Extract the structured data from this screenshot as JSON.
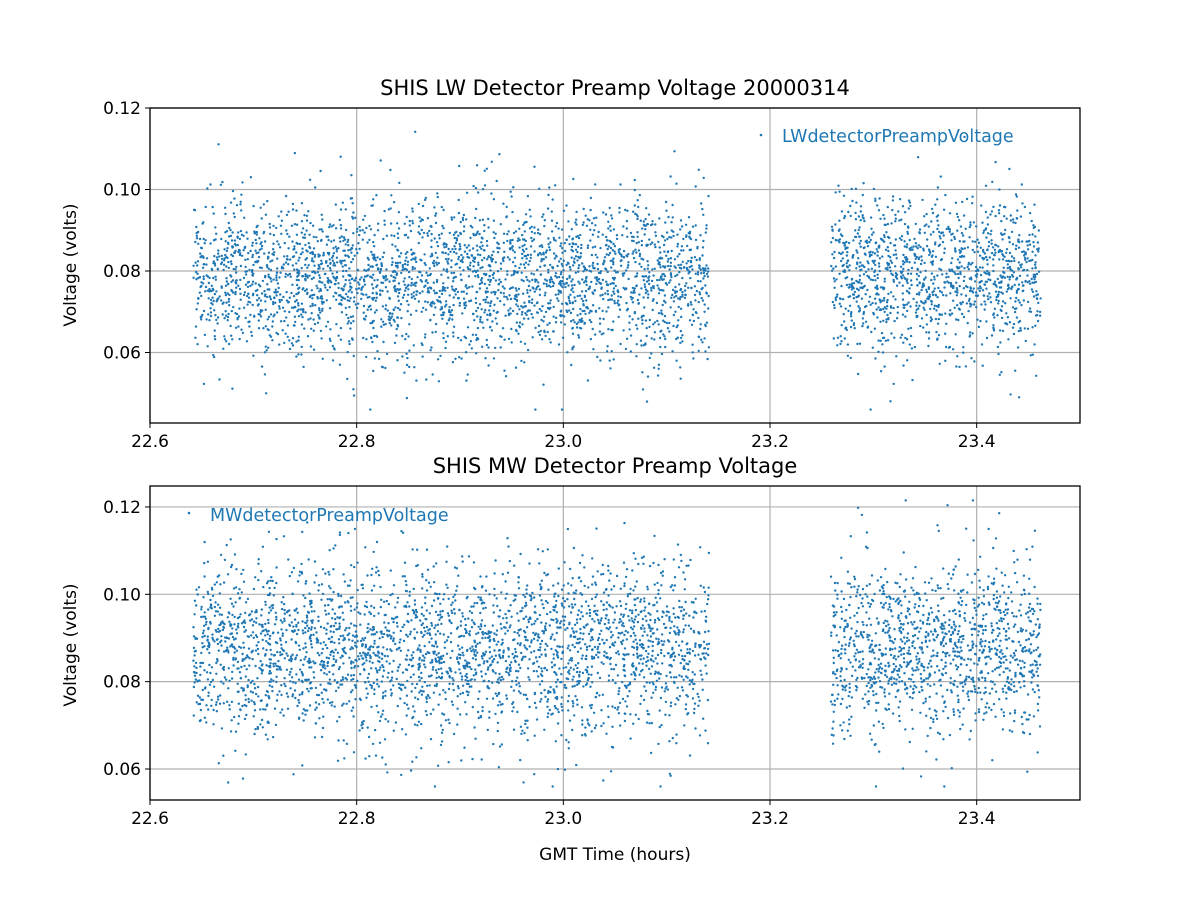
{
  "chart_data": [
    {
      "type": "scatter",
      "title": "SHIS LW Detector Preamp Voltage 20000314",
      "xlabel": "",
      "ylabel": "Voltage (volts)",
      "xlim": [
        22.6,
        23.5
      ],
      "ylim": [
        0.0427,
        0.12
      ],
      "xticks": [
        "22.6",
        "22.8",
        "23.0",
        "23.2",
        "23.4"
      ],
      "yticks": [
        "0.06",
        "0.08",
        "0.10",
        "0.12"
      ],
      "grid": true,
      "legend_placement": "upper-right",
      "series": [
        {
          "name": "LWdetectorPreampVoltage",
          "color": "#1f77b4",
          "marker": "point",
          "x_segments": [
            [
              22.642,
              23.141
            ],
            [
              23.259,
              23.462
            ]
          ],
          "points_per_segment": [
            3000,
            1250
          ],
          "y_mean": 0.0785,
          "y_std": 0.0095,
          "y_min": 0.046,
          "y_max": 0.117
        }
      ]
    },
    {
      "type": "scatter",
      "title": "SHIS MW Detector Preamp Voltage",
      "xlabel": "GMT Time (hours)",
      "ylabel": "Voltage (volts)",
      "xlim": [
        22.6,
        23.5
      ],
      "ylim": [
        0.0529,
        0.1248
      ],
      "xticks": [
        "22.6",
        "22.8",
        "23.0",
        "23.2",
        "23.4"
      ],
      "yticks": [
        "0.06",
        "0.08",
        "0.10",
        "0.12"
      ],
      "grid": true,
      "legend_placement": "upper-left",
      "series": [
        {
          "name": "MWdetectorPreampVoltage",
          "color": "#1f77b4",
          "marker": "point",
          "x_segments": [
            [
              22.642,
              23.141
            ],
            [
              23.259,
              23.462
            ]
          ],
          "points_per_segment": [
            3000,
            1250
          ],
          "y_mean": 0.0875,
          "y_std": 0.0098,
          "y_min": 0.056,
          "y_max": 0.1215
        }
      ]
    }
  ]
}
